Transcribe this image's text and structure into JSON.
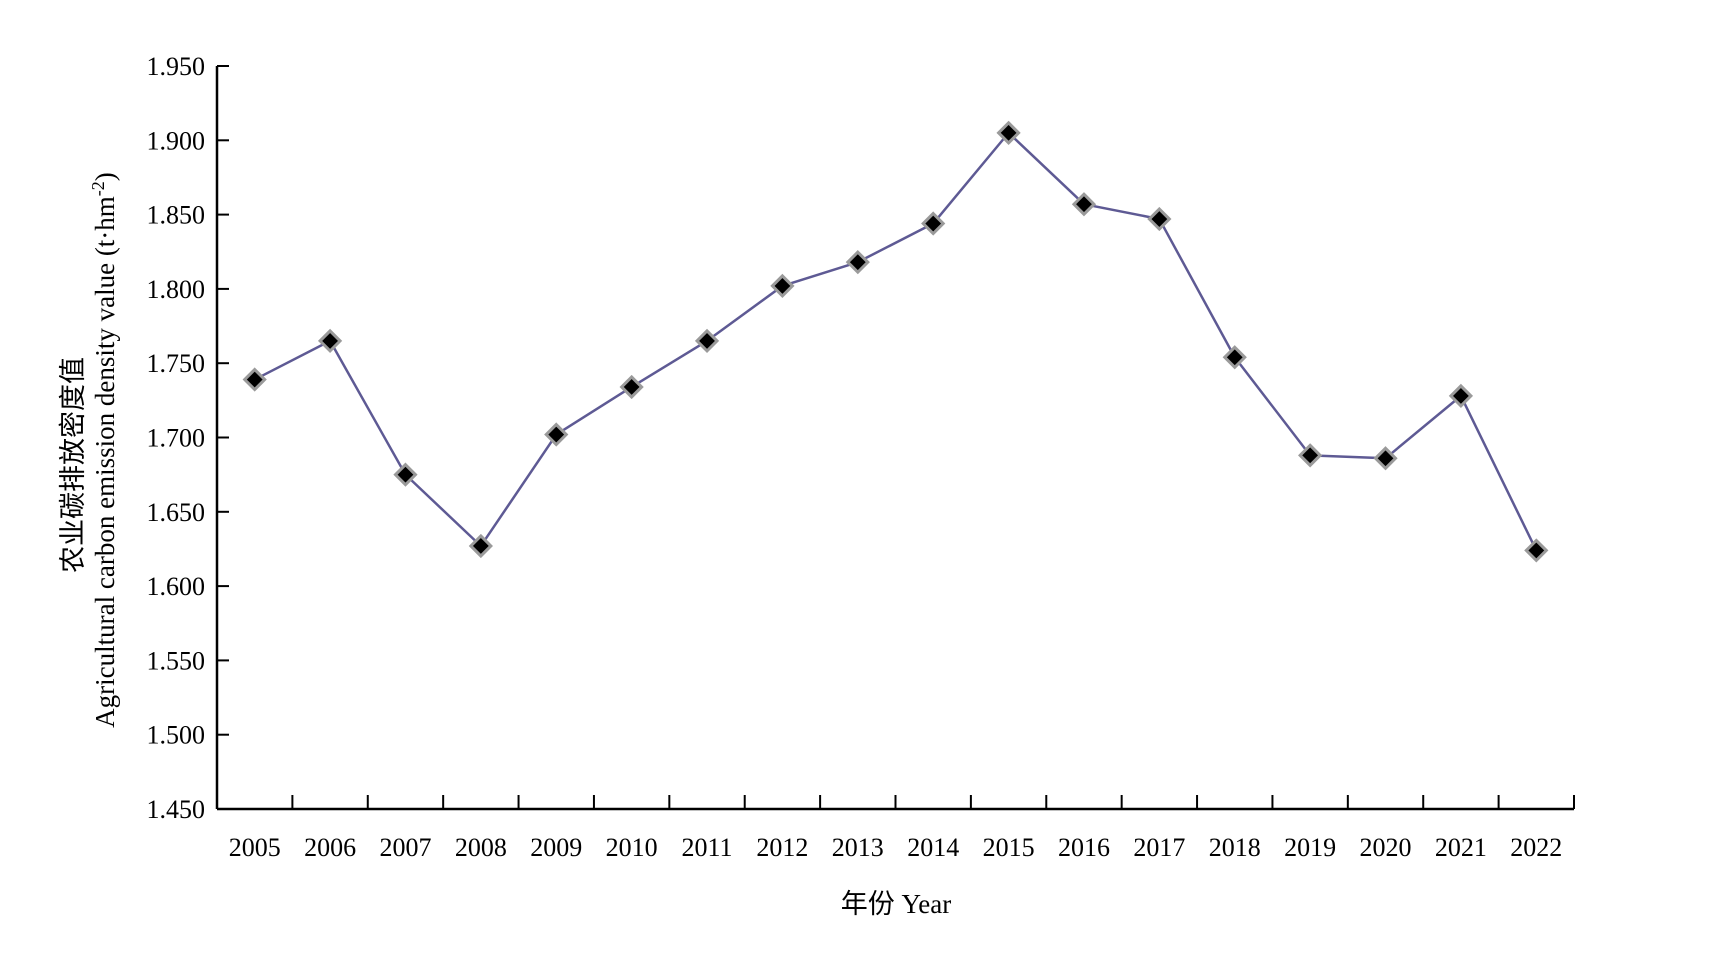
{
  "chart_data": {
    "type": "line",
    "title": "",
    "xlabel": "年份 Year",
    "ylabel_cn": "农业碳排放密度值",
    "ylabel_en": "Agricultural carbon emission density value (t·hm",
    "ylabel_sup": "-2",
    "ylabel_end": ")",
    "ylim": [
      1.45,
      1.95
    ],
    "y_ticks": [
      "1.450",
      "1.500",
      "1.550",
      "1.600",
      "1.650",
      "1.700",
      "1.750",
      "1.800",
      "1.850",
      "1.900",
      "1.950"
    ],
    "categories": [
      "2005",
      "2006",
      "2007",
      "2008",
      "2009",
      "2010",
      "2011",
      "2012",
      "2013",
      "2014",
      "2015",
      "2016",
      "2017",
      "2018",
      "2019",
      "2020",
      "2021",
      "2022"
    ],
    "series": [
      {
        "values": [
          1.739,
          1.765,
          1.675,
          1.627,
          1.702,
          1.734,
          1.765,
          1.802,
          1.818,
          1.844,
          1.905,
          1.857,
          1.847,
          1.754,
          1.688,
          1.686,
          1.728,
          1.624
        ],
        "color": "#5e5a94",
        "marker": "diamond",
        "marker_fill": "#000000",
        "marker_edge": "#9a9a9a"
      }
    ],
    "grid": false,
    "legend": "none"
  }
}
